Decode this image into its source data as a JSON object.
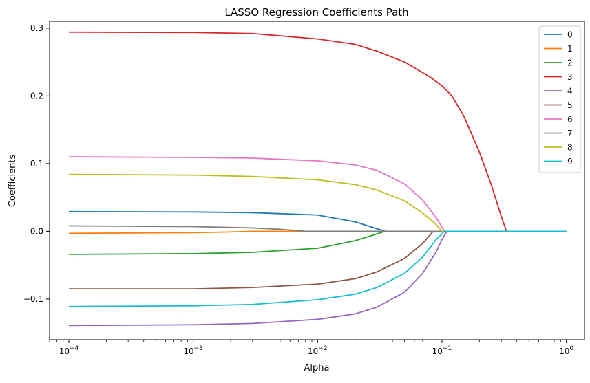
{
  "chart_data": {
    "type": "line",
    "title": "LASSO Regression Coefficients Path",
    "xlabel": "Alpha",
    "ylabel": "Coefficients",
    "xscale": "log",
    "xlim": [
      7e-05,
      1.4
    ],
    "ylim": [
      -0.16,
      0.31
    ],
    "x_ticks": [
      {
        "value": 0.0001,
        "base": "10",
        "exp": "−4"
      },
      {
        "value": 0.001,
        "base": "10",
        "exp": "−3"
      },
      {
        "value": 0.01,
        "base": "10",
        "exp": "−2"
      },
      {
        "value": 0.1,
        "base": "10",
        "exp": "−1"
      },
      {
        "value": 1,
        "base": "10",
        "exp": "0"
      }
    ],
    "y_ticks": [
      {
        "value": -0.1,
        "label": "−0.1"
      },
      {
        "value": 0.0,
        "label": "0.0"
      },
      {
        "value": 0.1,
        "label": "0.1"
      },
      {
        "value": 0.2,
        "label": "0.2"
      },
      {
        "value": 0.3,
        "label": "0.3"
      }
    ],
    "grid": false,
    "legend_position": "top-right",
    "series": [
      {
        "name": "0",
        "color": "#1f77b4",
        "points": [
          [
            0.0001,
            0.029
          ],
          [
            0.001,
            0.0285
          ],
          [
            0.003,
            0.0275
          ],
          [
            0.01,
            0.024
          ],
          [
            0.02,
            0.014
          ],
          [
            0.035,
            0.0
          ],
          [
            1,
            0.0
          ]
        ]
      },
      {
        "name": "1",
        "color": "#ff7f0e",
        "points": [
          [
            0.0001,
            -0.003
          ],
          [
            0.001,
            -0.002
          ],
          [
            0.002,
            -0.001
          ],
          [
            0.003,
            0.0
          ],
          [
            1,
            0.0
          ]
        ]
      },
      {
        "name": "2",
        "color": "#2ca02c",
        "points": [
          [
            0.0001,
            -0.034
          ],
          [
            0.001,
            -0.033
          ],
          [
            0.003,
            -0.031
          ],
          [
            0.01,
            -0.025
          ],
          [
            0.02,
            -0.014
          ],
          [
            0.035,
            0.0
          ],
          [
            1,
            0.0
          ]
        ]
      },
      {
        "name": "3",
        "color": "#d62728",
        "points": [
          [
            0.0001,
            0.294
          ],
          [
            0.001,
            0.2935
          ],
          [
            0.003,
            0.292
          ],
          [
            0.01,
            0.284
          ],
          [
            0.02,
            0.276
          ],
          [
            0.03,
            0.266
          ],
          [
            0.05,
            0.25
          ],
          [
            0.08,
            0.228
          ],
          [
            0.1,
            0.215
          ],
          [
            0.12,
            0.2
          ],
          [
            0.15,
            0.17
          ],
          [
            0.2,
            0.117
          ],
          [
            0.25,
            0.068
          ],
          [
            0.3,
            0.022
          ],
          [
            0.33,
            0.0
          ],
          [
            1,
            0.0
          ]
        ]
      },
      {
        "name": "4",
        "color": "#9467bd",
        "points": [
          [
            0.0001,
            -0.139
          ],
          [
            0.001,
            -0.138
          ],
          [
            0.003,
            -0.136
          ],
          [
            0.01,
            -0.13
          ],
          [
            0.02,
            -0.122
          ],
          [
            0.03,
            -0.112
          ],
          [
            0.05,
            -0.09
          ],
          [
            0.07,
            -0.062
          ],
          [
            0.09,
            -0.03
          ],
          [
            0.1,
            -0.012
          ],
          [
            0.11,
            0.0
          ],
          [
            1,
            0.0
          ]
        ]
      },
      {
        "name": "5",
        "color": "#8c564b",
        "points": [
          [
            0.0001,
            -0.085
          ],
          [
            0.001,
            -0.085
          ],
          [
            0.003,
            -0.083
          ],
          [
            0.01,
            -0.078
          ],
          [
            0.02,
            -0.07
          ],
          [
            0.03,
            -0.06
          ],
          [
            0.05,
            -0.04
          ],
          [
            0.07,
            -0.018
          ],
          [
            0.085,
            0.0
          ],
          [
            1,
            0.0
          ]
        ]
      },
      {
        "name": "6",
        "color": "#e377c2",
        "points": [
          [
            0.0001,
            0.11
          ],
          [
            0.001,
            0.109
          ],
          [
            0.003,
            0.108
          ],
          [
            0.01,
            0.104
          ],
          [
            0.02,
            0.098
          ],
          [
            0.03,
            0.09
          ],
          [
            0.05,
            0.07
          ],
          [
            0.07,
            0.046
          ],
          [
            0.09,
            0.02
          ],
          [
            0.105,
            0.0
          ],
          [
            1,
            0.0
          ]
        ]
      },
      {
        "name": "7",
        "color": "#7f7f7f",
        "points": [
          [
            0.0001,
            0.008
          ],
          [
            0.001,
            0.007
          ],
          [
            0.003,
            0.005
          ],
          [
            0.005,
            0.003
          ],
          [
            0.008,
            0.0
          ],
          [
            1,
            0.0
          ]
        ]
      },
      {
        "name": "8",
        "color": "#bcbd22",
        "points": [
          [
            0.0001,
            0.084
          ],
          [
            0.001,
            0.083
          ],
          [
            0.003,
            0.081
          ],
          [
            0.01,
            0.076
          ],
          [
            0.02,
            0.069
          ],
          [
            0.03,
            0.061
          ],
          [
            0.05,
            0.045
          ],
          [
            0.07,
            0.027
          ],
          [
            0.09,
            0.01
          ],
          [
            0.1,
            0.0
          ],
          [
            1,
            0.0
          ]
        ]
      },
      {
        "name": "9",
        "color": "#17becf",
        "points": [
          [
            0.0001,
            -0.111
          ],
          [
            0.001,
            -0.11
          ],
          [
            0.003,
            -0.108
          ],
          [
            0.01,
            -0.101
          ],
          [
            0.02,
            -0.093
          ],
          [
            0.03,
            -0.083
          ],
          [
            0.05,
            -0.062
          ],
          [
            0.07,
            -0.038
          ],
          [
            0.09,
            -0.012
          ],
          [
            0.105,
            0.0
          ],
          [
            1,
            0.0
          ]
        ]
      }
    ]
  }
}
